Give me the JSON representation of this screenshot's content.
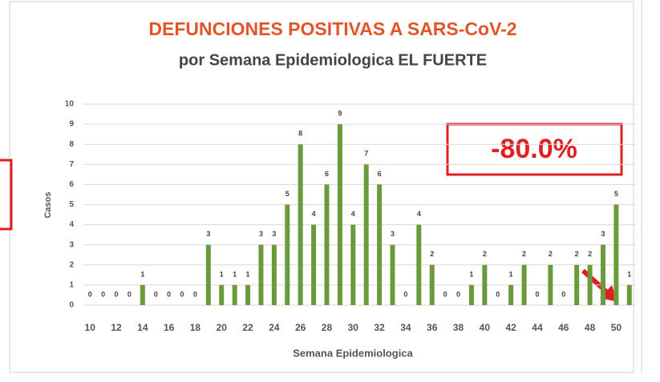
{
  "chart_data": {
    "type": "bar",
    "title": "DEFUNCIONES POSITIVAS A SARS-CoV-2",
    "subtitle": "por Semana Epidemiologica EL FUERTE",
    "x_label": "Semana Epidemiologica",
    "y_label": "Casos",
    "annotation": "-80.0%",
    "categories": [
      "10",
      null,
      "12",
      null,
      "14",
      null,
      "16",
      null,
      "18",
      null,
      "20",
      null,
      "22",
      null,
      "24",
      null,
      "26",
      null,
      "28",
      null,
      "30",
      null,
      "32",
      null,
      "34",
      null,
      "36",
      null,
      "38",
      null,
      "40",
      null,
      "42",
      null,
      "44",
      null,
      "46",
      null,
      "48",
      null,
      "50",
      null
    ],
    "values": [
      0,
      0,
      0,
      0,
      1,
      0,
      0,
      0,
      0,
      3,
      1,
      1,
      1,
      3,
      3,
      5,
      8,
      4,
      6,
      9,
      4,
      7,
      6,
      3,
      0,
      4,
      2,
      0,
      0,
      1,
      2,
      0,
      1,
      2,
      0,
      2,
      0,
      2,
      2,
      3,
      5,
      1
    ],
    "color": "#6b9a3c",
    "ylim": [
      0,
      10
    ],
    "yticks": [
      0,
      1,
      2,
      3,
      4,
      5,
      6,
      7,
      8,
      9,
      10
    ],
    "grid": true
  }
}
